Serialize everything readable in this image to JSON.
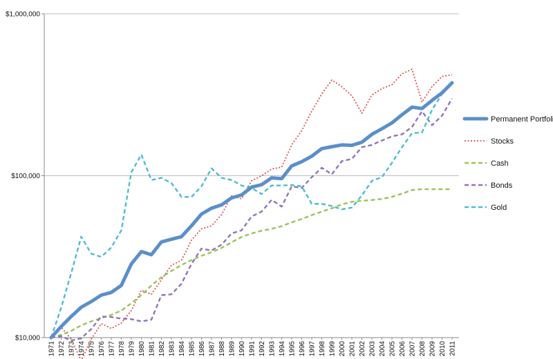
{
  "chart_data": {
    "type": "line",
    "title": "",
    "xlabel": "",
    "ylabel": "",
    "yscale": "log",
    "ylim": [
      10000,
      1000000
    ],
    "grid": "horizontal major",
    "legend_position": "right",
    "y_ticks": [
      {
        "value": 10000,
        "label": "$10,000"
      },
      {
        "value": 100000,
        "label": "$100,000"
      },
      {
        "value": 1000000,
        "label": "$1,000,000"
      }
    ],
    "x": [
      "1971",
      "1972",
      "1973",
      "1974",
      "1975",
      "1976",
      "1977",
      "1978",
      "1979",
      "1980",
      "1981",
      "1982",
      "1983",
      "1984",
      "1985",
      "1986",
      "1987",
      "1988",
      "1989",
      "1990",
      "1991",
      "1992",
      "1993",
      "1994",
      "1995",
      "1996",
      "1997",
      "1998",
      "1999",
      "2000",
      "2001",
      "2002",
      "2003",
      "2004",
      "2005",
      "2006",
      "2007",
      "2008",
      "2009",
      "2010",
      "2011"
    ],
    "series": [
      {
        "name": "Permanent Portfolio",
        "color": "#5b8fc9",
        "style": "solid-thick",
        "values": [
          10000,
          11700,
          13500,
          15400,
          16700,
          18300,
          19000,
          21000,
          28500,
          34000,
          32500,
          39000,
          40500,
          42000,
          49000,
          58000,
          63000,
          66000,
          73000,
          76000,
          85000,
          88000,
          97000,
          96000,
          115000,
          122000,
          132000,
          147000,
          151000,
          155000,
          154000,
          161000,
          180000,
          195000,
          212000,
          238000,
          265000,
          260000,
          292000,
          325000,
          375000
        ]
      },
      {
        "name": "Stocks",
        "color": "#d9534f",
        "style": "dotted",
        "values": [
          10000,
          11600,
          9800,
          7200,
          9800,
          12200,
          11400,
          12300,
          14700,
          19600,
          18500,
          22800,
          28000,
          30000,
          40000,
          47000,
          49000,
          57500,
          75000,
          72000,
          93000,
          100000,
          110000,
          113000,
          155000,
          190000,
          250000,
          320000,
          390000,
          355000,
          312000,
          243000,
          315000,
          345000,
          365000,
          425000,
          455000,
          285000,
          355000,
          410000,
          420000
        ]
      },
      {
        "name": "Cash",
        "color": "#9bc25b",
        "style": "dashed",
        "values": [
          10000,
          10400,
          11000,
          11900,
          12600,
          13200,
          13800,
          14700,
          16300,
          18300,
          21000,
          23600,
          25800,
          28100,
          30100,
          32000,
          33700,
          35800,
          38800,
          41800,
          44000,
          45700,
          47000,
          48800,
          51500,
          54100,
          57100,
          60000,
          62900,
          66500,
          69000,
          70000,
          70800,
          71800,
          74000,
          77500,
          81500,
          82500,
          82500,
          82500,
          82500
        ]
      },
      {
        "name": "Bonds",
        "color": "#8e74b8",
        "style": "dashed",
        "values": [
          10000,
          10200,
          9600,
          9900,
          11300,
          13500,
          13400,
          13100,
          13000,
          12600,
          12900,
          18300,
          18500,
          21500,
          28500,
          35500,
          34500,
          37500,
          44000,
          46000,
          56000,
          60000,
          71000,
          64500,
          86000,
          84000,
          98000,
          112000,
          102000,
          123000,
          127000,
          150000,
          155000,
          165000,
          175000,
          180000,
          200000,
          250000,
          205000,
          235000,
          300000
        ]
      },
      {
        "name": "Gold",
        "color": "#4bbcd0",
        "style": "dashed",
        "values": [
          10000,
          15300,
          25000,
          42000,
          33000,
          31500,
          36000,
          46000,
          105000,
          135000,
          94000,
          97000,
          90000,
          74000,
          74000,
          86000,
          111000,
          97000,
          94000,
          87000,
          84000,
          77000,
          87000,
          87000,
          87500,
          86000,
          67000,
          67000,
          65000,
          62000,
          63500,
          75500,
          93000,
          98000,
          120000,
          150000,
          183000,
          185000,
          255000,
          320000,
          375000
        ]
      }
    ]
  }
}
